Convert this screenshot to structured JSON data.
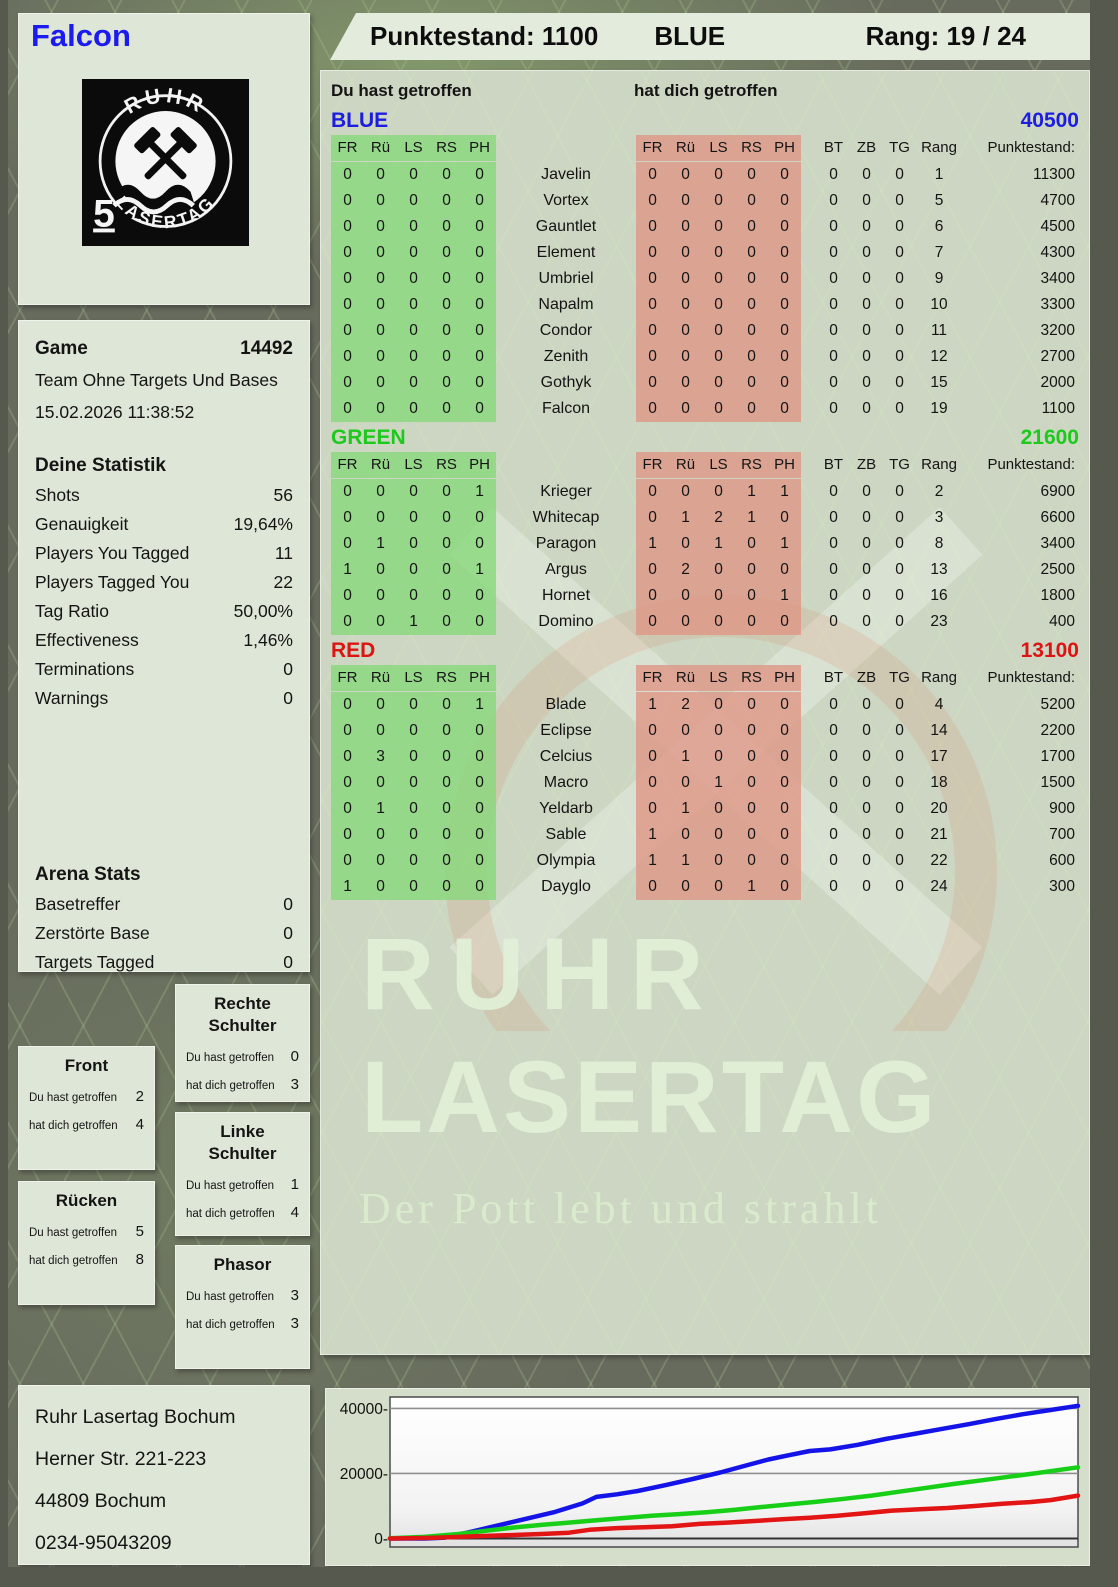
{
  "header": {
    "player_name": "Falcon",
    "score": "Punktestand: 1100",
    "team": "BLUE",
    "rank": "Rang: 19 / 24"
  },
  "logo": {
    "arc_top": "RUHR",
    "arc_bottom": "LASERTAG",
    "badge": "5"
  },
  "game_info": {
    "label": "Game",
    "number": "14492",
    "mode": "Team Ohne Targets Und Bases",
    "datetime": "15.02.2026 11:38:52"
  },
  "your_stats": {
    "title": "Deine Statistik",
    "rows": [
      [
        "Shots",
        "56"
      ],
      [
        "Genauigkeit",
        "19,64%"
      ],
      [
        "Players You Tagged",
        "11"
      ],
      [
        "Players Tagged You",
        "22"
      ],
      [
        "Tag Ratio",
        "50,00%"
      ],
      [
        "Effectiveness",
        "1,46%"
      ],
      [
        "Terminations",
        "0"
      ],
      [
        "Warnings",
        "0"
      ]
    ]
  },
  "arena_stats": {
    "title": "Arena Stats",
    "rows": [
      [
        "Basetreffer",
        "0"
      ],
      [
        "Zerstörte Base",
        "0"
      ],
      [
        "Targets Tagged",
        "0"
      ]
    ]
  },
  "labels": {
    "you_hit": "Du hast getroffen",
    "hit_you": "hat dich getroffen"
  },
  "hitboxes": {
    "front": {
      "title": "Front",
      "you_hit": "2",
      "hit_you": "4"
    },
    "ruecken": {
      "title": "Rücken",
      "you_hit": "5",
      "hit_you": "8"
    },
    "rechte_schulter": {
      "title": "Rechte Schulter",
      "you_hit": "0",
      "hit_you": "3"
    },
    "linke_schulter": {
      "title": "Linke Schulter",
      "you_hit": "1",
      "hit_you": "4"
    },
    "phasor": {
      "title": "Phasor",
      "you_hit": "3",
      "hit_you": "3"
    }
  },
  "score_table": {
    "hit_columns": [
      "FR",
      "Rü",
      "LS",
      "RS",
      "PH"
    ],
    "extra_columns": [
      "BT",
      "ZB",
      "TG",
      "Rang",
      "Punktestand:"
    ]
  },
  "teams": [
    {
      "name": "BLUE",
      "color": "#1d1de0",
      "total": "40500",
      "players": [
        {
          "name": "Javelin",
          "you_hit": [
            0,
            0,
            0,
            0,
            0
          ],
          "hit_you": [
            0,
            0,
            0,
            0,
            0
          ],
          "bt": 0,
          "zb": 0,
          "tg": 0,
          "rang": 1,
          "punktestand": 11300
        },
        {
          "name": "Vortex",
          "you_hit": [
            0,
            0,
            0,
            0,
            0
          ],
          "hit_you": [
            0,
            0,
            0,
            0,
            0
          ],
          "bt": 0,
          "zb": 0,
          "tg": 0,
          "rang": 5,
          "punktestand": 4700
        },
        {
          "name": "Gauntlet",
          "you_hit": [
            0,
            0,
            0,
            0,
            0
          ],
          "hit_you": [
            0,
            0,
            0,
            0,
            0
          ],
          "bt": 0,
          "zb": 0,
          "tg": 0,
          "rang": 6,
          "punktestand": 4500
        },
        {
          "name": "Element",
          "you_hit": [
            0,
            0,
            0,
            0,
            0
          ],
          "hit_you": [
            0,
            0,
            0,
            0,
            0
          ],
          "bt": 0,
          "zb": 0,
          "tg": 0,
          "rang": 7,
          "punktestand": 4300
        },
        {
          "name": "Umbriel",
          "you_hit": [
            0,
            0,
            0,
            0,
            0
          ],
          "hit_you": [
            0,
            0,
            0,
            0,
            0
          ],
          "bt": 0,
          "zb": 0,
          "tg": 0,
          "rang": 9,
          "punktestand": 3400
        },
        {
          "name": "Napalm",
          "you_hit": [
            0,
            0,
            0,
            0,
            0
          ],
          "hit_you": [
            0,
            0,
            0,
            0,
            0
          ],
          "bt": 0,
          "zb": 0,
          "tg": 0,
          "rang": 10,
          "punktestand": 3300
        },
        {
          "name": "Condor",
          "you_hit": [
            0,
            0,
            0,
            0,
            0
          ],
          "hit_you": [
            0,
            0,
            0,
            0,
            0
          ],
          "bt": 0,
          "zb": 0,
          "tg": 0,
          "rang": 11,
          "punktestand": 3200
        },
        {
          "name": "Zenith",
          "you_hit": [
            0,
            0,
            0,
            0,
            0
          ],
          "hit_you": [
            0,
            0,
            0,
            0,
            0
          ],
          "bt": 0,
          "zb": 0,
          "tg": 0,
          "rang": 12,
          "punktestand": 2700
        },
        {
          "name": "Gothyk",
          "you_hit": [
            0,
            0,
            0,
            0,
            0
          ],
          "hit_you": [
            0,
            0,
            0,
            0,
            0
          ],
          "bt": 0,
          "zb": 0,
          "tg": 0,
          "rang": 15,
          "punktestand": 2000
        },
        {
          "name": "Falcon",
          "you_hit": [
            0,
            0,
            0,
            0,
            0
          ],
          "hit_you": [
            0,
            0,
            0,
            0,
            0
          ],
          "bt": 0,
          "zb": 0,
          "tg": 0,
          "rang": 19,
          "punktestand": 1100
        }
      ]
    },
    {
      "name": "GREEN",
      "color": "#1ec91e",
      "total": "21600",
      "players": [
        {
          "name": "Krieger",
          "you_hit": [
            0,
            0,
            0,
            0,
            1
          ],
          "hit_you": [
            0,
            0,
            0,
            1,
            1
          ],
          "bt": 0,
          "zb": 0,
          "tg": 0,
          "rang": 2,
          "punktestand": 6900
        },
        {
          "name": "Whitecap",
          "you_hit": [
            0,
            0,
            0,
            0,
            0
          ],
          "hit_you": [
            0,
            1,
            2,
            1,
            0
          ],
          "bt": 0,
          "zb": 0,
          "tg": 0,
          "rang": 3,
          "punktestand": 6600
        },
        {
          "name": "Paragon",
          "you_hit": [
            0,
            1,
            0,
            0,
            0
          ],
          "hit_you": [
            1,
            0,
            1,
            0,
            1
          ],
          "bt": 0,
          "zb": 0,
          "tg": 0,
          "rang": 8,
          "punktestand": 3400
        },
        {
          "name": "Argus",
          "you_hit": [
            1,
            0,
            0,
            0,
            1
          ],
          "hit_you": [
            0,
            2,
            0,
            0,
            0
          ],
          "bt": 0,
          "zb": 0,
          "tg": 0,
          "rang": 13,
          "punktestand": 2500
        },
        {
          "name": "Hornet",
          "you_hit": [
            0,
            0,
            0,
            0,
            0
          ],
          "hit_you": [
            0,
            0,
            0,
            0,
            1
          ],
          "bt": 0,
          "zb": 0,
          "tg": 0,
          "rang": 16,
          "punktestand": 1800
        },
        {
          "name": "Domino",
          "you_hit": [
            0,
            0,
            1,
            0,
            0
          ],
          "hit_you": [
            0,
            0,
            0,
            0,
            0
          ],
          "bt": 0,
          "zb": 0,
          "tg": 0,
          "rang": 23,
          "punktestand": 400
        }
      ]
    },
    {
      "name": "RED",
      "color": "#dd1414",
      "total": "13100",
      "players": [
        {
          "name": "Blade",
          "you_hit": [
            0,
            0,
            0,
            0,
            1
          ],
          "hit_you": [
            1,
            2,
            0,
            0,
            0
          ],
          "bt": 0,
          "zb": 0,
          "tg": 0,
          "rang": 4,
          "punktestand": 5200
        },
        {
          "name": "Eclipse",
          "you_hit": [
            0,
            0,
            0,
            0,
            0
          ],
          "hit_you": [
            0,
            0,
            0,
            0,
            0
          ],
          "bt": 0,
          "zb": 0,
          "tg": 0,
          "rang": 14,
          "punktestand": 2200
        },
        {
          "name": "Celcius",
          "you_hit": [
            0,
            3,
            0,
            0,
            0
          ],
          "hit_you": [
            0,
            1,
            0,
            0,
            0
          ],
          "bt": 0,
          "zb": 0,
          "tg": 0,
          "rang": 17,
          "punktestand": 1700
        },
        {
          "name": "Macro",
          "you_hit": [
            0,
            0,
            0,
            0,
            0
          ],
          "hit_you": [
            0,
            0,
            1,
            0,
            0
          ],
          "bt": 0,
          "zb": 0,
          "tg": 0,
          "rang": 18,
          "punktestand": 1500
        },
        {
          "name": "Yeldarb",
          "you_hit": [
            0,
            1,
            0,
            0,
            0
          ],
          "hit_you": [
            0,
            1,
            0,
            0,
            0
          ],
          "bt": 0,
          "zb": 0,
          "tg": 0,
          "rang": 20,
          "punktestand": 900
        },
        {
          "name": "Sable",
          "you_hit": [
            0,
            0,
            0,
            0,
            0
          ],
          "hit_you": [
            1,
            0,
            0,
            0,
            0
          ],
          "bt": 0,
          "zb": 0,
          "tg": 0,
          "rang": 21,
          "punktestand": 700
        },
        {
          "name": "Olympia",
          "you_hit": [
            0,
            0,
            0,
            0,
            0
          ],
          "hit_you": [
            1,
            1,
            0,
            0,
            0
          ],
          "bt": 0,
          "zb": 0,
          "tg": 0,
          "rang": 22,
          "punktestand": 600
        },
        {
          "name": "Dayglo",
          "you_hit": [
            1,
            0,
            0,
            0,
            0
          ],
          "hit_you": [
            0,
            0,
            0,
            1,
            0
          ],
          "bt": 0,
          "zb": 0,
          "tg": 0,
          "rang": 24,
          "punktestand": 300
        }
      ]
    }
  ],
  "watermark": {
    "line1": "RUHR",
    "line2": "LASERTAG",
    "tagline": "Der Pott lebt und strahlt"
  },
  "address": {
    "lines": [
      "Ruhr Lasertag Bochum",
      "Herner Str. 221-223",
      "44809 Bochum",
      "0234-95043209"
    ]
  },
  "chart_data": {
    "type": "line",
    "title": "",
    "xlabel": "",
    "ylabel": "",
    "yticks": [
      0,
      20000,
      40000
    ],
    "ylim": [
      -2600,
      43500
    ],
    "grid": true,
    "legend": "none",
    "series": [
      {
        "name": "BLUE",
        "color": "#1414e8",
        "points": [
          [
            0,
            0
          ],
          [
            0.05,
            0
          ],
          [
            0.08,
            300
          ],
          [
            0.12,
            2200
          ],
          [
            0.16,
            4200
          ],
          [
            0.2,
            6200
          ],
          [
            0.24,
            8200
          ],
          [
            0.28,
            10800
          ],
          [
            0.3,
            12800
          ],
          [
            0.33,
            13600
          ],
          [
            0.36,
            14600
          ],
          [
            0.4,
            16400
          ],
          [
            0.44,
            18300
          ],
          [
            0.48,
            20300
          ],
          [
            0.52,
            22600
          ],
          [
            0.55,
            24300
          ],
          [
            0.58,
            25600
          ],
          [
            0.61,
            26900
          ],
          [
            0.64,
            27400
          ],
          [
            0.68,
            28800
          ],
          [
            0.72,
            30600
          ],
          [
            0.76,
            32100
          ],
          [
            0.8,
            33600
          ],
          [
            0.84,
            35100
          ],
          [
            0.88,
            36700
          ],
          [
            0.92,
            38200
          ],
          [
            0.96,
            39500
          ],
          [
            1,
            40800
          ]
        ]
      },
      {
        "name": "GREEN",
        "color": "#17cf17",
        "points": [
          [
            0,
            100
          ],
          [
            0.05,
            500
          ],
          [
            0.1,
            1400
          ],
          [
            0.14,
            2400
          ],
          [
            0.18,
            3400
          ],
          [
            0.22,
            4200
          ],
          [
            0.26,
            4900
          ],
          [
            0.3,
            5600
          ],
          [
            0.34,
            6300
          ],
          [
            0.38,
            7000
          ],
          [
            0.42,
            7500
          ],
          [
            0.46,
            8100
          ],
          [
            0.5,
            8800
          ],
          [
            0.54,
            9700
          ],
          [
            0.58,
            10500
          ],
          [
            0.62,
            11300
          ],
          [
            0.66,
            12200
          ],
          [
            0.7,
            13200
          ],
          [
            0.74,
            14400
          ],
          [
            0.78,
            15600
          ],
          [
            0.82,
            16800
          ],
          [
            0.86,
            17900
          ],
          [
            0.9,
            19000
          ],
          [
            0.94,
            20100
          ],
          [
            0.97,
            21000
          ],
          [
            1,
            21900
          ]
        ]
      },
      {
        "name": "RED",
        "color": "#e21414",
        "points": [
          [
            0,
            0
          ],
          [
            0.06,
            200
          ],
          [
            0.1,
            500
          ],
          [
            0.14,
            800
          ],
          [
            0.18,
            1100
          ],
          [
            0.22,
            1400
          ],
          [
            0.26,
            1800
          ],
          [
            0.29,
            2700
          ],
          [
            0.33,
            3200
          ],
          [
            0.37,
            3500
          ],
          [
            0.41,
            3800
          ],
          [
            0.45,
            4500
          ],
          [
            0.49,
            4900
          ],
          [
            0.53,
            5400
          ],
          [
            0.57,
            5900
          ],
          [
            0.61,
            6400
          ],
          [
            0.65,
            7000
          ],
          [
            0.69,
            7800
          ],
          [
            0.73,
            8600
          ],
          [
            0.77,
            9000
          ],
          [
            0.81,
            9400
          ],
          [
            0.85,
            10000
          ],
          [
            0.89,
            10700
          ],
          [
            0.93,
            11200
          ],
          [
            0.96,
            11800
          ],
          [
            1,
            13200
          ]
        ]
      }
    ]
  }
}
